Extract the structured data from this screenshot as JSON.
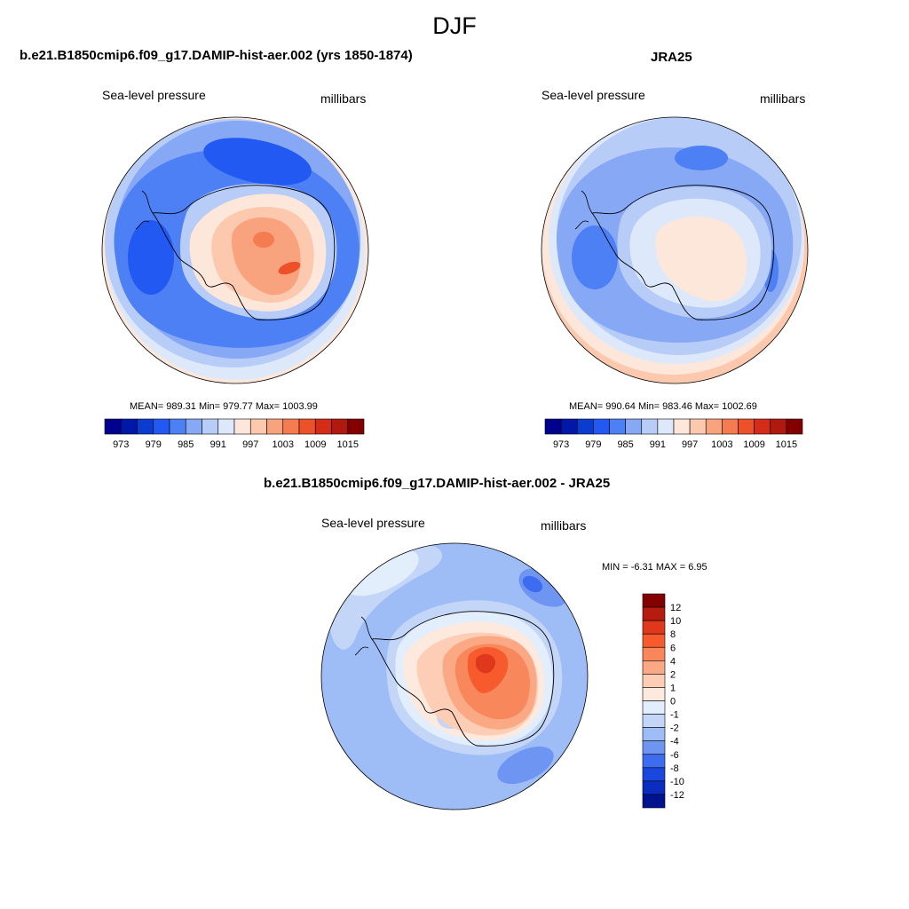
{
  "page": {
    "title": "DJF"
  },
  "panels": [
    {
      "title": "b.e21.B1850cmip6.f09_g17.DAMIP-hist-aer.002 (yrs 1850-1874)",
      "left_label": "Sea-level pressure",
      "right_label": "millibars",
      "stats": "MEAN= 989.31  Min= 979.77  Max= 1003.99",
      "mean": 989.31,
      "min": 979.77,
      "max": 1003.99
    },
    {
      "title": "JRA25",
      "left_label": "Sea-level pressure",
      "right_label": "millibars",
      "stats": "MEAN= 990.64  Min= 983.46  Max= 1002.69",
      "mean": 990.64,
      "min": 983.46,
      "max": 1002.69
    },
    {
      "title": "b.e21.B1850cmip6.f09_g17.DAMIP-hist-aer.002 - JRA25",
      "left_label": "Sea-level pressure",
      "right_label": "millibars",
      "stats": "MIN =  -6.31 MAX =   6.95",
      "min": -6.31,
      "max": 6.95
    }
  ],
  "colorbar_abs": {
    "colors": [
      "#00008f",
      "#0018a8",
      "#0a3ccf",
      "#2159f2",
      "#4d7ff5",
      "#86a8f5",
      "#b7cdf7",
      "#dde9fb",
      "#fde6da",
      "#fcc9ae",
      "#f9a27e",
      "#f57b50",
      "#ec512a",
      "#d42c17",
      "#b01a0e",
      "#840000"
    ],
    "tick_labels": [
      "973",
      "979",
      "985",
      "991",
      "997",
      "1003",
      "1009",
      "1015"
    ]
  },
  "colorbar_diff": {
    "colors": [
      "#840000",
      "#b51b0e",
      "#e0381c",
      "#f75b2d",
      "#f9875c",
      "#fba985",
      "#fdcdb5",
      "#fde9dd",
      "#e3eefc",
      "#c3d6f8",
      "#9ebcf6",
      "#6f95f3",
      "#3d6cf0",
      "#1a47dc",
      "#0a2cbf",
      "#00138f"
    ],
    "tick_labels": [
      "12",
      "10",
      "8",
      "6",
      "4",
      "2",
      "1",
      "0",
      "-1",
      "-2",
      "-4",
      "-6",
      "-8",
      "-10",
      "-12"
    ]
  },
  "map_colors": {
    "ocean_deep": "#2159f2",
    "ocean_mid": "#4d7ff5",
    "ocean_light": "#86a8f5",
    "ocean_pale": "#b7cdf7",
    "near_zero": "#dde9fb",
    "warm_pale": "#fde6da",
    "warm_light": "#fcc9ae",
    "warm_mid": "#f9a27e",
    "warm_strong": "#f57b50",
    "warm_deep": "#ec512a"
  }
}
